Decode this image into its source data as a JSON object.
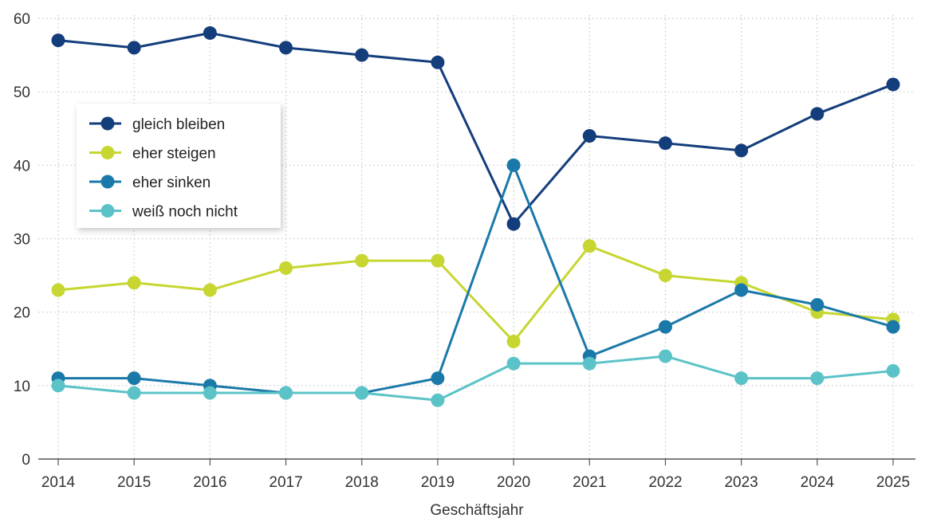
{
  "chart_data": {
    "type": "line",
    "title": "",
    "xlabel": "Geschäftsjahr",
    "ylabel": "",
    "categories": [
      "2014",
      "2015",
      "2016",
      "2017",
      "2018",
      "2019",
      "2020",
      "2021",
      "2022",
      "2023",
      "2024",
      "2025"
    ],
    "ylim": [
      0,
      60
    ],
    "yticks": [
      "0",
      "10",
      "20",
      "30",
      "40",
      "50",
      "60"
    ],
    "grid": true,
    "legend_position": "top-left",
    "series": [
      {
        "name": "gleich bleiben",
        "color": "#143d7c",
        "values": [
          57,
          56,
          58,
          56,
          55,
          54,
          32,
          44,
          43,
          42,
          47,
          51
        ]
      },
      {
        "name": "eher steigen",
        "color": "#c7d631",
        "values": [
          23,
          24,
          23,
          26,
          27,
          27,
          16,
          29,
          25,
          24,
          20,
          19
        ]
      },
      {
        "name": "eher sinken",
        "color": "#1a79a8",
        "values": [
          11,
          11,
          10,
          9,
          9,
          11,
          40,
          14,
          18,
          23,
          21,
          18
        ]
      },
      {
        "name": "weiß noch nicht",
        "color": "#5bc3c7",
        "values": [
          10,
          9,
          9,
          9,
          9,
          8,
          13,
          13,
          14,
          11,
          11,
          12
        ]
      }
    ]
  }
}
